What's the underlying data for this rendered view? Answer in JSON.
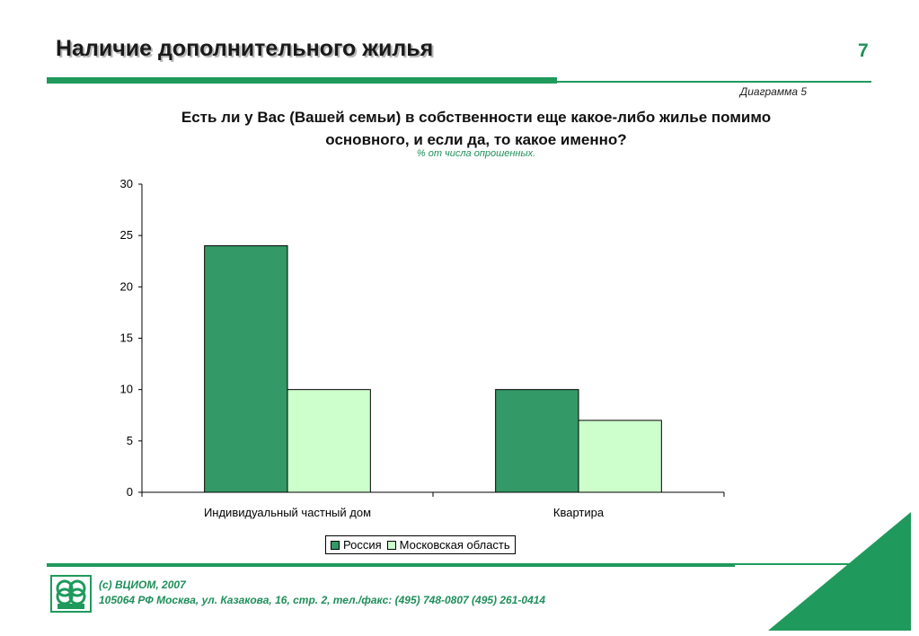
{
  "header": {
    "title": "Наличие дополнительного  жилья",
    "page_number": "7",
    "diagram_label": "Диаграмма  5"
  },
  "question": {
    "line1": "Есть ли у Вас (Вашей семьи) в собственности еще какое-либо жилье помимо",
    "line2": "основного, и если да, то какое именно?",
    "subtitle": "% от числа опрошенных."
  },
  "colors": {
    "accent": "#1f9a5c",
    "russia": "#339966",
    "moscow_region": "#ccffcc"
  },
  "chart_data": {
    "type": "bar",
    "categories": [
      "Индивидуальный частный дом",
      "Квартира"
    ],
    "series": [
      {
        "name": "Россия",
        "values": [
          24,
          10
        ],
        "color": "#339966"
      },
      {
        "name": "Московская область",
        "values": [
          10,
          7
        ],
        "color": "#ccffcc"
      }
    ],
    "yticks": [
      "0",
      "5",
      "10",
      "15",
      "20",
      "25",
      "30"
    ],
    "ylim": [
      0,
      30
    ],
    "grid": false,
    "legend_position": "bottom"
  },
  "footer": {
    "line1": "(c) ВЦИОМ, 2007",
    "line2": "105064 РФ Москва, ул. Казакова, 16, стр. 2, тел./факс: (495) 748-0807 (495) 261-0414",
    "logo_icon": "vciom-logo-icon"
  }
}
